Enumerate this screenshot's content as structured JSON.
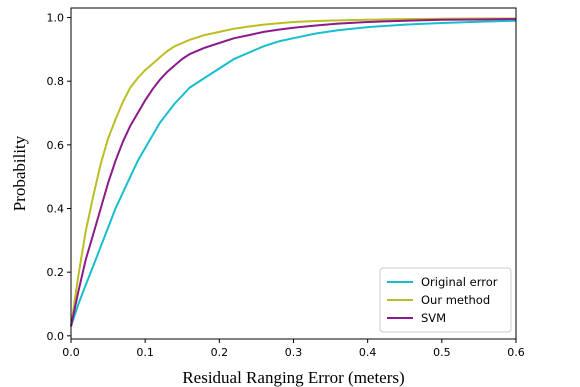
{
  "chart_data": {
    "type": "line",
    "title": "",
    "xlabel": "Residual Ranging Error (meters)",
    "ylabel": "Probability",
    "xlim": [
      0.0,
      0.6
    ],
    "ylim": [
      -0.01,
      1.03
    ],
    "xticks": [
      {
        "value": 0.0,
        "label": "0.0"
      },
      {
        "value": 0.1,
        "label": "0.1"
      },
      {
        "value": 0.2,
        "label": "0.2"
      },
      {
        "value": 0.3,
        "label": "0.3"
      },
      {
        "value": 0.4,
        "label": "0.4"
      },
      {
        "value": 0.5,
        "label": "0.5"
      },
      {
        "value": 0.6,
        "label": "0.6"
      }
    ],
    "yticks": [
      {
        "value": 0.0,
        "label": "0.0"
      },
      {
        "value": 0.2,
        "label": "0.2"
      },
      {
        "value": 0.4,
        "label": "0.4"
      },
      {
        "value": 0.6,
        "label": "0.6"
      },
      {
        "value": 0.8,
        "label": "0.8"
      },
      {
        "value": 1.0,
        "label": "1.0"
      }
    ],
    "grid": false,
    "legend_position": "lower-right",
    "series": [
      {
        "name": "Original error",
        "color": "#17becf",
        "x": [
          0.0,
          0.01,
          0.02,
          0.03,
          0.04,
          0.05,
          0.06,
          0.07,
          0.08,
          0.09,
          0.1,
          0.11,
          0.12,
          0.13,
          0.14,
          0.15,
          0.16,
          0.18,
          0.2,
          0.22,
          0.24,
          0.26,
          0.28,
          0.3,
          0.33,
          0.36,
          0.4,
          0.45,
          0.5,
          0.55,
          0.6
        ],
        "y": [
          0.03,
          0.1,
          0.16,
          0.22,
          0.28,
          0.34,
          0.4,
          0.45,
          0.5,
          0.55,
          0.59,
          0.63,
          0.67,
          0.7,
          0.73,
          0.755,
          0.78,
          0.81,
          0.84,
          0.87,
          0.89,
          0.91,
          0.925,
          0.935,
          0.95,
          0.96,
          0.97,
          0.978,
          0.983,
          0.987,
          0.99
        ]
      },
      {
        "name": "Our method",
        "color": "#bcbd22",
        "x": [
          0.0,
          0.01,
          0.02,
          0.03,
          0.04,
          0.05,
          0.06,
          0.07,
          0.08,
          0.09,
          0.1,
          0.11,
          0.12,
          0.13,
          0.14,
          0.15,
          0.16,
          0.18,
          0.2,
          0.22,
          0.24,
          0.26,
          0.28,
          0.3,
          0.33,
          0.36,
          0.4,
          0.45,
          0.5,
          0.55,
          0.6
        ],
        "y": [
          0.03,
          0.19,
          0.33,
          0.44,
          0.54,
          0.62,
          0.68,
          0.735,
          0.78,
          0.81,
          0.835,
          0.855,
          0.875,
          0.895,
          0.91,
          0.92,
          0.93,
          0.945,
          0.955,
          0.965,
          0.972,
          0.978,
          0.982,
          0.986,
          0.989,
          0.991,
          0.993,
          0.995,
          0.996,
          0.997,
          0.997
        ]
      },
      {
        "name": "SVM",
        "color": "#8b1a8b",
        "x": [
          0.0,
          0.01,
          0.02,
          0.03,
          0.04,
          0.05,
          0.06,
          0.07,
          0.08,
          0.09,
          0.1,
          0.11,
          0.12,
          0.13,
          0.14,
          0.15,
          0.16,
          0.18,
          0.2,
          0.22,
          0.24,
          0.26,
          0.28,
          0.3,
          0.33,
          0.36,
          0.4,
          0.45,
          0.5,
          0.55,
          0.6
        ],
        "y": [
          0.03,
          0.14,
          0.24,
          0.32,
          0.4,
          0.48,
          0.55,
          0.61,
          0.66,
          0.7,
          0.74,
          0.775,
          0.805,
          0.83,
          0.85,
          0.87,
          0.885,
          0.905,
          0.92,
          0.935,
          0.945,
          0.955,
          0.962,
          0.968,
          0.975,
          0.981,
          0.986,
          0.99,
          0.993,
          0.994,
          0.995
        ]
      }
    ]
  }
}
